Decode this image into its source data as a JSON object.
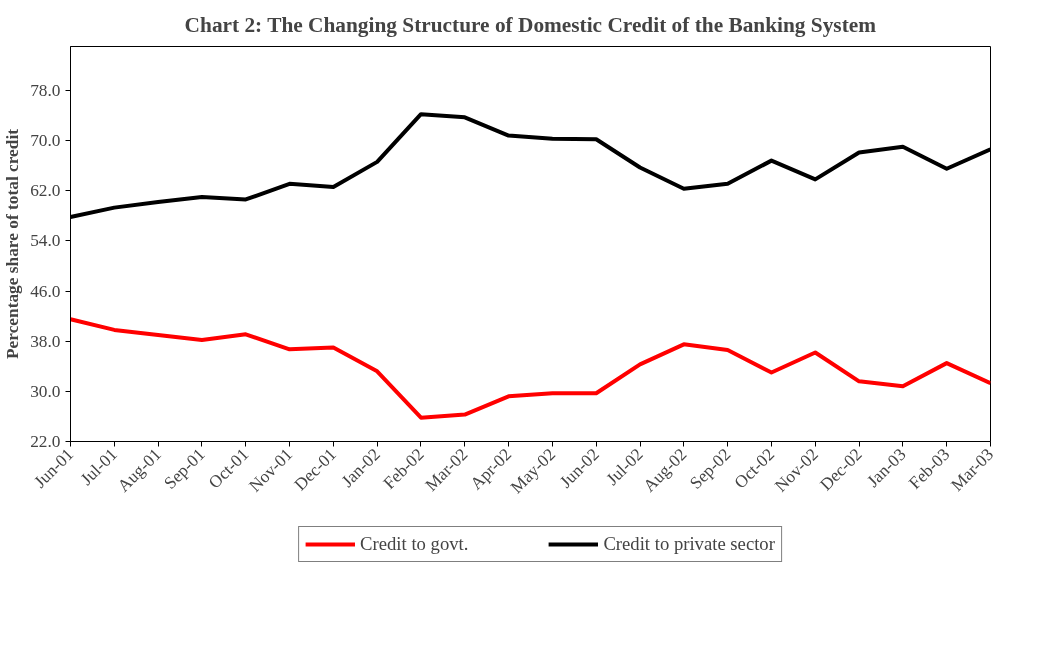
{
  "chart_data": {
    "type": "line",
    "title": "Chart 2: The Changing Structure of Domestic Credit of the Banking System",
    "ylabel": "Percentage share of total credit",
    "categories": [
      "Jun-01",
      "Jul-01",
      "Aug-01",
      "Sep-01",
      "Oct-01",
      "Nov-01",
      "Dec-01",
      "Jan-02",
      "Feb-02",
      "Mar-02",
      "Apr-02",
      "May-02",
      "Jun-02",
      "Jul-02",
      "Aug-02",
      "Sep-02",
      "Oct-02",
      "Nov-02",
      "Dec-02",
      "Jan-03",
      "Feb-03",
      "Mar-03"
    ],
    "series": [
      {
        "name": "Credit to govt.",
        "color": "#ff0000",
        "values": [
          41.5,
          39.8,
          39.0,
          38.2,
          39.1,
          36.7,
          37.0,
          33.2,
          25.8,
          26.3,
          29.2,
          29.7,
          29.7,
          34.3,
          37.5,
          36.6,
          33.0,
          36.2,
          31.6,
          30.8,
          34.5,
          31.3
        ]
      },
      {
        "name": "Credit to private sector",
        "color": "#000000",
        "values": [
          57.8,
          59.3,
          60.2,
          61.0,
          60.6,
          63.1,
          62.6,
          66.6,
          74.2,
          73.7,
          70.8,
          70.3,
          70.2,
          65.7,
          62.3,
          63.1,
          66.8,
          63.8,
          68.1,
          69.0,
          65.5,
          68.6
        ]
      }
    ],
    "ylim": [
      22,
      85
    ],
    "yticks": [
      {
        "value": 22,
        "label": "22.0"
      },
      {
        "value": 30,
        "label": "30.0"
      },
      {
        "value": 38,
        "label": "38.0"
      },
      {
        "value": 46,
        "label": "46.0"
      },
      {
        "value": 54,
        "label": "54.0"
      },
      {
        "value": 62,
        "label": "62.0"
      },
      {
        "value": 70,
        "label": "70.0"
      },
      {
        "value": 78,
        "label": "78.0"
      }
    ],
    "legend": "bottom",
    "line_style": "solid",
    "marker": "none",
    "grid": false
  }
}
